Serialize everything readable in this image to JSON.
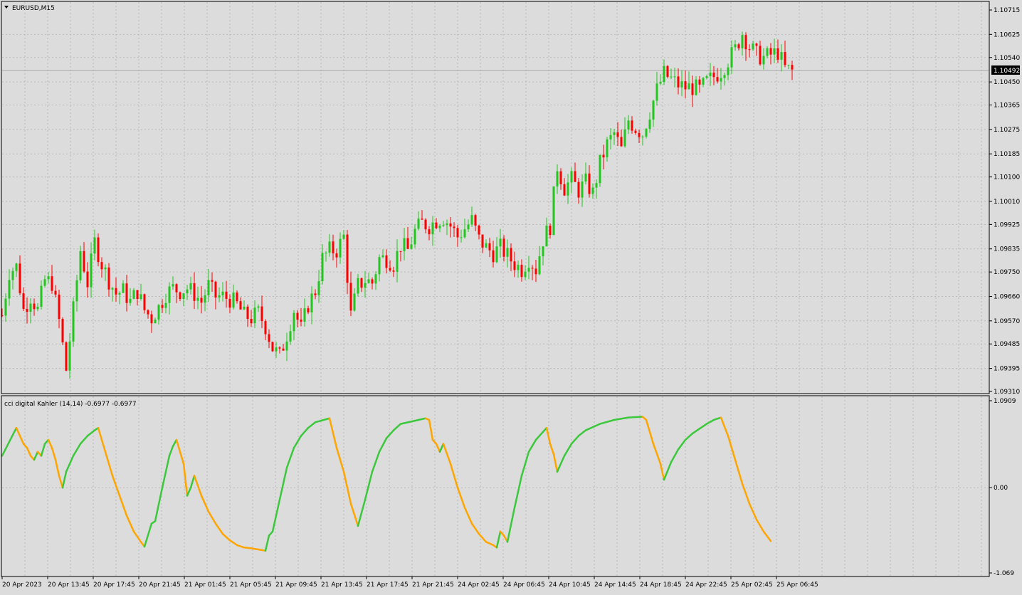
{
  "main_panel": {
    "title": "EURUSD,M15",
    "current_price": "1.10492",
    "colors": {
      "bull": "#22c61e",
      "bear": "#ff0000",
      "grid": "#b9b9b9",
      "price_line": "#a8a8a8",
      "background": "#dcdcdc"
    }
  },
  "indicator_panel": {
    "title": "cci digital Kahler (14,14) -0.6977 -0.6977",
    "colors": {
      "rising": "#3cc83c",
      "falling": "#ffa500"
    }
  },
  "chart_data": [
    {
      "type": "candlestick",
      "yaxis_ticks": [
        "1.10715",
        "1.10625",
        "1.10540",
        "1.10450",
        "1.10365",
        "1.10275",
        "1.10185",
        "1.10100",
        "1.10010",
        "1.09925",
        "1.09835",
        "1.09750",
        "1.09660",
        "1.09570",
        "1.09485",
        "1.09395",
        "1.09310"
      ],
      "ylim": [
        1.0931,
        1.10715
      ],
      "xaxis_ticks": [
        "20 Apr 2023",
        "20 Apr 13:45",
        "20 Apr 17:45",
        "20 Apr 21:45",
        "21 Apr 01:45",
        "21 Apr 05:45",
        "21 Apr 09:45",
        "21 Apr 13:45",
        "21 Apr 17:45",
        "21 Apr 21:45",
        "24 Apr 02:45",
        "24 Apr 06:45",
        "24 Apr 10:45",
        "24 Apr 14:45",
        "24 Apr 18:45",
        "24 Apr 22:45",
        "25 Apr 02:45",
        "25 Apr 06:45"
      ],
      "close_path": [
        [
          0,
          1.0959
        ],
        [
          2,
          1.0975
        ],
        [
          4,
          1.0977
        ],
        [
          6,
          1.0961
        ],
        [
          8,
          1.0966
        ],
        [
          10,
          1.0961
        ],
        [
          12,
          1.0972
        ],
        [
          14,
          1.0971
        ],
        [
          16,
          1.0957
        ],
        [
          18,
          1.0939
        ],
        [
          20,
          1.0961
        ],
        [
          22,
          1.0983
        ],
        [
          24,
          1.0971
        ],
        [
          26,
          1.0986
        ],
        [
          28,
          1.0978
        ],
        [
          30,
          1.0972
        ],
        [
          32,
          1.0967
        ],
        [
          34,
          1.0968
        ],
        [
          36,
          1.0964
        ],
        [
          38,
          1.0968
        ],
        [
          40,
          1.0961
        ],
        [
          42,
          1.0958
        ],
        [
          44,
          1.0962
        ],
        [
          46,
          1.0967
        ],
        [
          48,
          1.0969
        ],
        [
          50,
          1.0968
        ],
        [
          52,
          1.0969
        ],
        [
          54,
          1.0967
        ],
        [
          56,
          1.0964
        ],
        [
          58,
          1.097
        ],
        [
          60,
          1.0966
        ],
        [
          62,
          1.0966
        ],
        [
          64,
          1.0965
        ],
        [
          66,
          1.0963
        ],
        [
          68,
          1.0959
        ],
        [
          70,
          1.0958
        ],
        [
          72,
          1.096
        ],
        [
          74,
          1.0955
        ],
        [
          76,
          1.0947
        ],
        [
          78,
          1.0944
        ],
        [
          80,
          1.0952
        ],
        [
          82,
          1.0961
        ],
        [
          84,
          1.0954
        ],
        [
          86,
          1.0963
        ],
        [
          88,
          1.0968
        ],
        [
          90,
          1.098
        ],
        [
          92,
          1.0983
        ],
        [
          94,
          1.0983
        ],
        [
          96,
          1.0988
        ],
        [
          98,
          1.0959
        ],
        [
          100,
          1.097
        ],
        [
          102,
          1.0972
        ],
        [
          104,
          1.0971
        ],
        [
          106,
          1.098
        ],
        [
          108,
          1.098
        ],
        [
          110,
          1.0978
        ],
        [
          112,
          1.0985
        ],
        [
          114,
          1.0983
        ],
        [
          116,
          1.099
        ],
        [
          118,
          1.0993
        ],
        [
          120,
          1.0992
        ],
        [
          122,
          1.0994
        ],
        [
          124,
          1.0995
        ],
        [
          126,
          1.0992
        ],
        [
          128,
          1.0988
        ],
        [
          130,
          1.0991
        ],
        [
          132,
          1.0994
        ],
        [
          134,
          1.0987
        ],
        [
          136,
          1.0984
        ],
        [
          138,
          1.0982
        ],
        [
          140,
          1.0984
        ],
        [
          142,
          1.0981
        ],
        [
          144,
          1.0978
        ],
        [
          146,
          1.0976
        ],
        [
          148,
          1.098
        ],
        [
          150,
          1.0976
        ],
        [
          152,
          1.0987
        ],
        [
          154,
          1.0992
        ],
        [
          156,
          1.1014
        ],
        [
          158,
          1.1006
        ],
        [
          160,
          1.1009
        ],
        [
          162,
          1.1005
        ],
        [
          164,
          1.1008
        ],
        [
          166,
          1.1004
        ],
        [
          168,
          1.1015
        ],
        [
          170,
          1.1022
        ],
        [
          172,
          1.1026
        ],
        [
          174,
          1.102
        ],
        [
          176,
          1.1031
        ],
        [
          178,
          1.1028
        ],
        [
          180,
          1.1026
        ],
        [
          182,
          1.1034
        ],
        [
          184,
          1.1042
        ],
        [
          186,
          1.1048
        ],
        [
          188,
          1.1046
        ],
        [
          190,
          1.1044
        ],
        [
          192,
          1.1043
        ],
        [
          194,
          1.1043
        ],
        [
          196,
          1.1042
        ],
        [
          198,
          1.1045
        ],
        [
          200,
          1.1047
        ],
        [
          202,
          1.1049
        ],
        [
          204,
          1.1053
        ],
        [
          206,
          1.1057
        ],
        [
          208,
          1.1063
        ],
        [
          210,
          1.1058
        ],
        [
          212,
          1.1055
        ],
        [
          214,
          1.1054
        ],
        [
          216,
          1.1055
        ],
        [
          218,
          1.1056
        ],
        [
          220,
          1.105
        ],
        [
          222,
          1.1049
        ]
      ]
    },
    {
      "type": "line",
      "yaxis_ticks": [
        "1.0909",
        "0.00",
        "-1.069"
      ],
      "ylim": [
        -1.069,
        1.0909
      ],
      "series": [
        {
          "color_rule": "green when rising, orange when falling",
          "values": [
            [
              0,
              0.4
            ],
            [
              4,
              0.75
            ],
            [
              5,
              0.65
            ],
            [
              6,
              0.55
            ],
            [
              7,
              0.5
            ],
            [
              8,
              0.4
            ],
            [
              9,
              0.35
            ],
            [
              10,
              0.45
            ],
            [
              11,
              0.4
            ],
            [
              12,
              0.55
            ],
            [
              13,
              0.6
            ],
            [
              14,
              0.5
            ],
            [
              15,
              0.35
            ],
            [
              16,
              0.15
            ],
            [
              17,
              0.0
            ],
            [
              18,
              0.2
            ],
            [
              20,
              0.4
            ],
            [
              22,
              0.55
            ],
            [
              24,
              0.65
            ],
            [
              26,
              0.72
            ],
            [
              27,
              0.75
            ],
            [
              29,
              0.45
            ],
            [
              31,
              0.15
            ],
            [
              33,
              -0.1
            ],
            [
              35,
              -0.35
            ],
            [
              37,
              -0.55
            ],
            [
              39,
              -0.68
            ],
            [
              40,
              -0.74
            ],
            [
              42,
              -0.45
            ],
            [
              43,
              -0.42
            ],
            [
              45,
              0.0
            ],
            [
              47,
              0.4
            ],
            [
              48,
              0.52
            ],
            [
              49,
              0.6
            ],
            [
              51,
              0.3
            ],
            [
              52,
              -0.1
            ],
            [
              53,
              0.0
            ],
            [
              54,
              0.15
            ],
            [
              56,
              -0.1
            ],
            [
              58,
              -0.3
            ],
            [
              60,
              -0.45
            ],
            [
              62,
              -0.58
            ],
            [
              64,
              -0.66
            ],
            [
              66,
              -0.72
            ],
            [
              68,
              -0.75
            ],
            [
              70,
              -0.76
            ],
            [
              74,
              -0.79
            ],
            [
              75,
              -0.6
            ],
            [
              76,
              -0.55
            ],
            [
              78,
              -0.15
            ],
            [
              80,
              0.25
            ],
            [
              82,
              0.5
            ],
            [
              84,
              0.65
            ],
            [
              86,
              0.75
            ],
            [
              88,
              0.82
            ],
            [
              92,
              0.87
            ],
            [
              94,
              0.5
            ],
            [
              96,
              0.2
            ],
            [
              98,
              -0.2
            ],
            [
              100,
              -0.48
            ],
            [
              102,
              -0.15
            ],
            [
              104,
              0.2
            ],
            [
              106,
              0.45
            ],
            [
              108,
              0.62
            ],
            [
              110,
              0.72
            ],
            [
              112,
              0.8
            ],
            [
              116,
              0.84
            ],
            [
              119,
              0.87
            ],
            [
              120,
              0.85
            ],
            [
              121,
              0.6
            ],
            [
              122,
              0.55
            ],
            [
              123,
              0.45
            ],
            [
              124,
              0.55
            ],
            [
              126,
              0.3
            ],
            [
              128,
              0.0
            ],
            [
              130,
              -0.25
            ],
            [
              132,
              -0.45
            ],
            [
              134,
              -0.58
            ],
            [
              136,
              -0.68
            ],
            [
              138,
              -0.72
            ],
            [
              139,
              -0.75
            ],
            [
              140,
              -0.55
            ],
            [
              141,
              -0.6
            ],
            [
              142,
              -0.68
            ],
            [
              144,
              -0.25
            ],
            [
              146,
              0.15
            ],
            [
              148,
              0.45
            ],
            [
              150,
              0.6
            ],
            [
              152,
              0.7
            ],
            [
              153,
              0.75
            ],
            [
              154,
              0.55
            ],
            [
              155,
              0.42
            ],
            [
              156,
              0.2
            ],
            [
              158,
              0.4
            ],
            [
              160,
              0.55
            ],
            [
              162,
              0.65
            ],
            [
              164,
              0.72
            ],
            [
              168,
              0.8
            ],
            [
              172,
              0.85
            ],
            [
              176,
              0.88
            ],
            [
              180,
              0.89
            ],
            [
              181,
              0.85
            ],
            [
              183,
              0.55
            ],
            [
              185,
              0.3
            ],
            [
              186,
              0.1
            ],
            [
              188,
              0.32
            ],
            [
              190,
              0.48
            ],
            [
              192,
              0.6
            ],
            [
              194,
              0.68
            ],
            [
              196,
              0.74
            ],
            [
              198,
              0.8
            ],
            [
              200,
              0.85
            ],
            [
              202,
              0.88
            ],
            [
              204,
              0.65
            ],
            [
              206,
              0.35
            ],
            [
              208,
              0.05
            ],
            [
              210,
              -0.2
            ],
            [
              212,
              -0.4
            ],
            [
              214,
              -0.55
            ],
            [
              216,
              -0.67
            ]
          ]
        }
      ]
    }
  ]
}
